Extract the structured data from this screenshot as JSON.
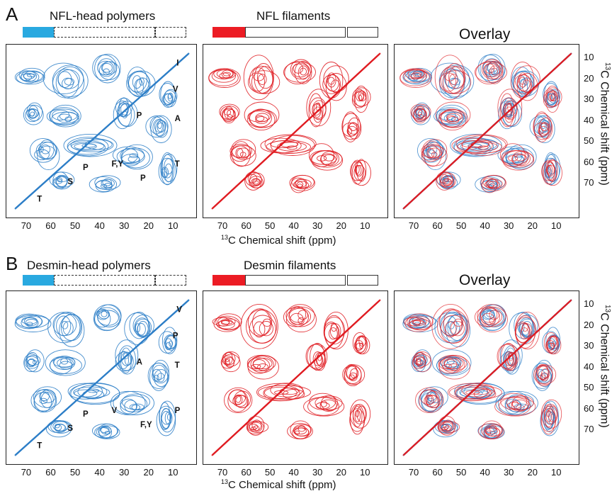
{
  "figure": {
    "rows": [
      {
        "letter": "A",
        "head_title": "NFL-head polymers",
        "filament_title": "NFL filaments",
        "overlay_title": "Overlay",
        "annotations": [
          "I",
          "V",
          "P",
          "A",
          "T",
          "P",
          "F,Y",
          "P",
          "S",
          "T"
        ],
        "xlabel": "13C Chemical shift (ppm)",
        "ylabel": "13C Chemical shift (ppm)"
      },
      {
        "letter": "B",
        "head_title": "Desmin-head polymers",
        "filament_title": "Desmin filaments",
        "overlay_title": "Overlay",
        "annotations": [
          "V",
          "P",
          "A",
          "T",
          "P",
          "F,Y",
          "V",
          "P",
          "S",
          "T"
        ],
        "xlabel": "13C Chemical shift (ppm)",
        "ylabel": "13C Chemical shift (ppm)"
      }
    ],
    "x_ticks": [
      "70",
      "60",
      "50",
      "40",
      "30",
      "20",
      "10"
    ],
    "y_ticks": [
      "10",
      "20",
      "30",
      "40",
      "50",
      "60",
      "70"
    ],
    "axis_prefix_super": "13",
    "axis_text": "C Chemical shift (ppm)",
    "colors": {
      "head": "#2f7fc8",
      "filament": "#e01e24",
      "head_bar": "#29a9e0",
      "filament_bar": "#ec1c24"
    }
  }
}
